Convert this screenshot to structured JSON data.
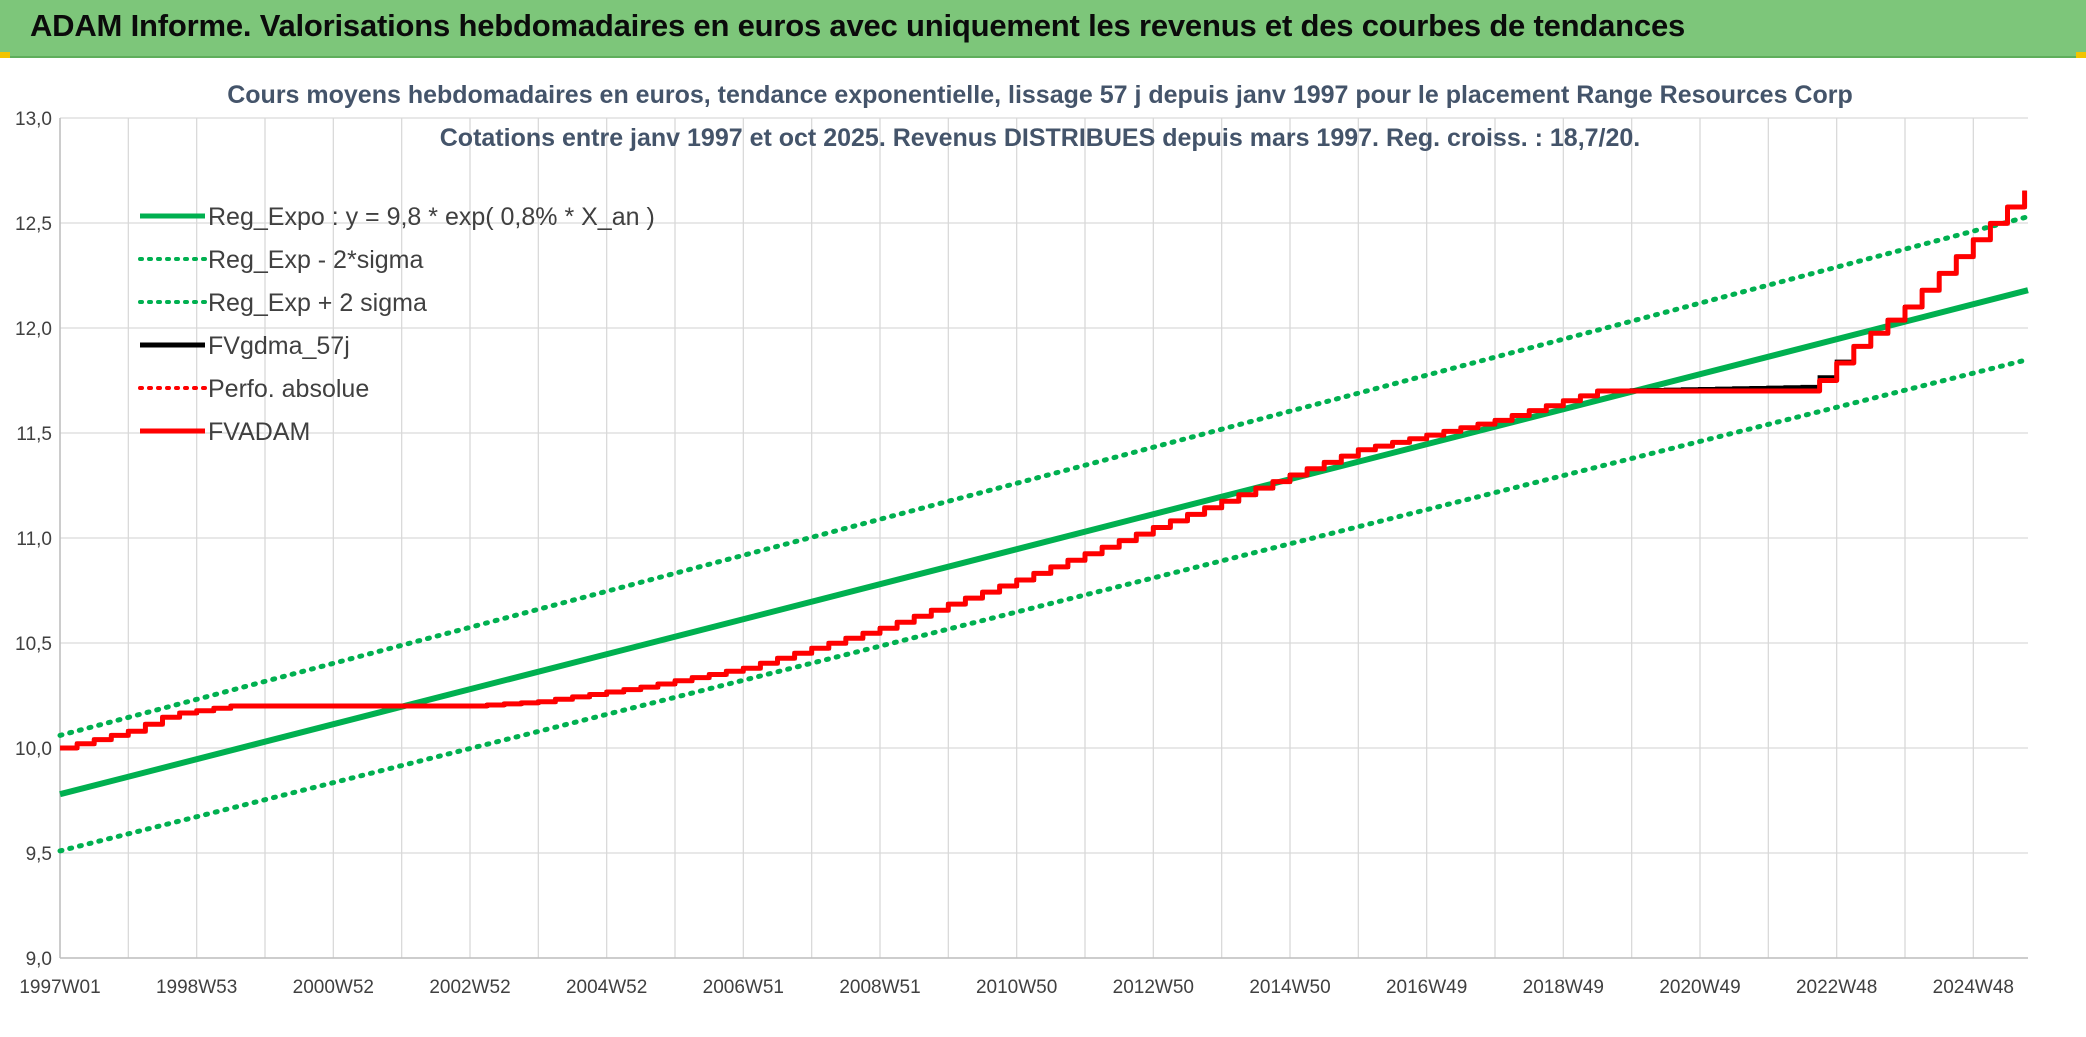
{
  "banner": {
    "title": "ADAM Informe. Valorisations hebdomadaires en euros avec uniquement les revenus et des courbes de tendances"
  },
  "colors": {
    "banner": "#7dc67a",
    "reg": "#00b050",
    "fvgdma": "#000000",
    "fvadam": "#ff0000",
    "grid": "#d9d9d9",
    "title": "#44546a"
  },
  "chart_data": {
    "type": "line",
    "title": "Cours moyens hebdomadaires en euros, tendance exponentielle, lissage 57 j depuis janv 1997 pour le placement Range Resources Corp",
    "subtitle": "Cotations entre janv 1997 et oct 2025. Revenus DISTRIBUES depuis mars 1997. Reg. croiss. : 18,7/20.",
    "xlabel": "",
    "ylabel": "",
    "x_range": [
      1997.0,
      2025.8
    ],
    "ylim": [
      9.0,
      13.0
    ],
    "y_ticks": [
      "9,0",
      "9,5",
      "10,0",
      "10,5",
      "11,0",
      "11,5",
      "12,0",
      "12,5",
      "13,0"
    ],
    "y_tick_values": [
      9.0,
      9.5,
      10.0,
      10.5,
      11.0,
      11.5,
      12.0,
      12.5,
      13.0
    ],
    "x_tick_labels": [
      "1997W01",
      "1998W53",
      "2000W52",
      "2002W52",
      "2004W52",
      "2006W51",
      "2008W51",
      "2010W50",
      "2012W50",
      "2014W50",
      "2016W49",
      "2018W49",
      "2020W49",
      "2022W48",
      "2024W48"
    ],
    "x_tick_years": [
      1997.0,
      1999.0,
      2001.0,
      2003.0,
      2005.0,
      2007.0,
      2009.0,
      2011.0,
      2013.0,
      2015.0,
      2017.0,
      2019.0,
      2021.0,
      2023.0,
      2025.0
    ],
    "legend": [
      {
        "name": "Reg_Expo : y = 9,8 * exp( 0,8% *  X_an )",
        "style": "solid",
        "color": "#00b050"
      },
      {
        "name": "Reg_Exp - 2*sigma",
        "style": "dotted",
        "color": "#00b050"
      },
      {
        "name": "Reg_Exp + 2 sigma",
        "style": "dotted",
        "color": "#00b050"
      },
      {
        "name": "FVgdma_57j",
        "style": "solid",
        "color": "#000000"
      },
      {
        "name": "Perfo. absolue",
        "style": "dotted",
        "color": "#ff0000"
      },
      {
        "name": "FVADAM",
        "style": "solid",
        "color": "#ff0000"
      }
    ],
    "series": [
      {
        "name": "Reg_Expo",
        "x": [
          1997.0,
          2025.8
        ],
        "y": [
          9.78,
          12.18
        ]
      },
      {
        "name": "Reg_Exp - 2*sigma",
        "x": [
          1997.0,
          2025.8
        ],
        "y": [
          9.51,
          11.85
        ]
      },
      {
        "name": "Reg_Exp + 2 sigma",
        "x": [
          1997.0,
          2025.8
        ],
        "y": [
          10.06,
          12.53
        ]
      },
      {
        "name": "FVgdma_57j",
        "x": [
          1997.0,
          1998.0,
          1998.6,
          1999.5,
          2003.0,
          2004.0,
          2005.5,
          2007.0,
          2009.0,
          2011.0,
          2013.0,
          2015.0,
          2016.0,
          2018.0,
          2019.5,
          2022.6,
          2023.2,
          2024.0,
          2025.0,
          2025.8
        ],
        "y": [
          10.0,
          10.08,
          10.16,
          10.2,
          10.2,
          10.22,
          10.29,
          10.38,
          10.57,
          10.8,
          11.05,
          11.3,
          11.42,
          11.56,
          11.7,
          11.72,
          11.9,
          12.1,
          12.42,
          12.67
        ]
      },
      {
        "name": "FVADAM",
        "x": [
          1997.0,
          1998.0,
          1998.6,
          1999.5,
          2003.0,
          2004.0,
          2005.5,
          2007.0,
          2009.0,
          2011.0,
          2013.0,
          2015.0,
          2016.0,
          2018.0,
          2019.5,
          2022.6,
          2023.2,
          2024.0,
          2025.0,
          2025.8
        ],
        "y": [
          10.0,
          10.08,
          10.16,
          10.2,
          10.2,
          10.22,
          10.29,
          10.38,
          10.57,
          10.8,
          11.05,
          11.3,
          11.42,
          11.56,
          11.7,
          11.7,
          11.9,
          12.1,
          12.42,
          12.67
        ]
      }
    ]
  }
}
